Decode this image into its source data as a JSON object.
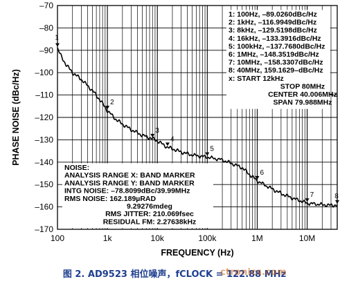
{
  "chart_data": {
    "type": "line",
    "xlabel": "FREQUENCY (Hz)",
    "ylabel": "PHASE NOISE (dBc/Hz)",
    "x_scale": "log",
    "xlim": [
      100,
      40000000
    ],
    "ylim": [
      -170,
      -70
    ],
    "x_ticks": [
      100,
      1000,
      10000,
      100000,
      1000000,
      10000000
    ],
    "x_tick_labels": [
      "100",
      "1k",
      "10k",
      "100k",
      "1M",
      "10M"
    ],
    "y_ticks": [
      -70,
      -80,
      -90,
      -100,
      -110,
      -120,
      -130,
      -140,
      -150,
      -160,
      -170
    ],
    "y_tick_labels": [
      "–70",
      "–80",
      "–90",
      "–100",
      "–110",
      "–120",
      "–130",
      "–140",
      "–150",
      "–160",
      "–170"
    ],
    "grid": true,
    "series": [
      {
        "color": "#000000",
        "x": [
          100,
          120,
          150,
          200,
          300,
          500,
          700,
          1000,
          1500,
          2000,
          3000,
          5000,
          8000,
          10000,
          16000,
          20000,
          30000,
          50000,
          100000,
          200000,
          300000,
          500000,
          700000,
          1000000,
          2000000,
          3000000,
          5000000,
          10000000,
          20000000,
          30000000,
          40000000
        ],
        "y": [
          -89.03,
          -93,
          -96.5,
          -100,
          -103,
          -108,
          -112,
          -116.99,
          -121,
          -123,
          -125.5,
          -128,
          -129.52,
          -130.5,
          -133.39,
          -134,
          -135.5,
          -136.8,
          -137.77,
          -139,
          -140.5,
          -142.5,
          -145.5,
          -148.35,
          -152,
          -154,
          -156,
          -158.33,
          -159,
          -159.3,
          -159.16
        ]
      }
    ],
    "markers": [
      {
        "id": "1",
        "x": 100,
        "y": -89.03
      },
      {
        "id": "2",
        "x": 1000,
        "y": -116.99
      },
      {
        "id": "3",
        "x": 8000,
        "y": -129.52
      },
      {
        "id": "4",
        "x": 16000,
        "y": -133.39
      },
      {
        "id": "5",
        "x": 100000,
        "y": -137.77
      },
      {
        "id": "6",
        "x": 1000000,
        "y": -148.35
      },
      {
        "id": "7",
        "x": 10000000,
        "y": -158.33
      },
      {
        "id": "8",
        "x": 40000000,
        "y": -159.16
      }
    ],
    "legend_lines": [
      "1: 100Hz, –89.0260dBc/Hz",
      "2: 1kHz, –116.9949dBc/Hz",
      "3: 8kHz, –129.5198dBc/Hz",
      "4: 16kHz, –133.3916dBc/Hz",
      "5: 100kHz, –137.7680dBc/Hz",
      "6: 1MHz, –148.3519dBc/Hz",
      "7: 10MHz, –158.3307dBc/Hz",
      "8: 40MHz, 159.1629–dBc/Hz",
      "x:    START 12kHz",
      "STOP 80MHz",
      "CENTER 40.006MHz",
      "SPAN 79.988MHz"
    ],
    "noise_lines": [
      "NOISE:",
      "ANALYSIS RANGE X: BAND MARKER",
      "ANALYSIS RANGE Y: BAND MARKER",
      "INTG NOISE: –78.8099dBc/39.99MHz",
      "RMS NOISE: 162.189µRAD",
      "9.29276mdeg",
      "RMS JITTER: 210.069fsec",
      "RESIDUAL FM: 2.27638kHz"
    ]
  },
  "caption": "图 2. AD9523 相位噪声，fCLOCK = 122.88 MHz",
  "watermark": "ctronics.com",
  "colors": {
    "caption": "#1f3f8f",
    "watermark": "#c05a10",
    "curve": "#000000"
  }
}
